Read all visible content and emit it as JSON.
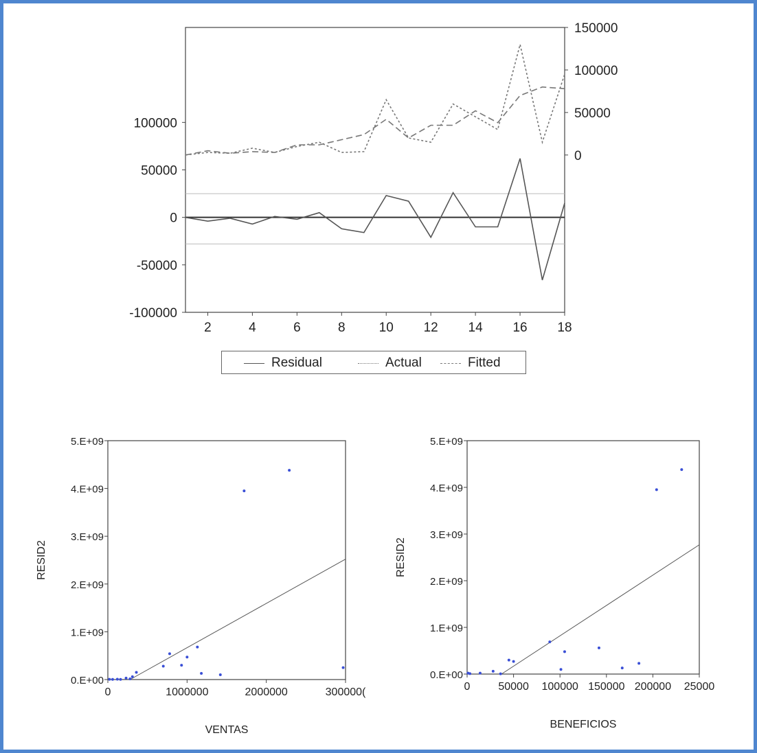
{
  "frame": {
    "border_color": "#4f86cf"
  },
  "chart_data": [
    {
      "type": "line",
      "title": "",
      "x": [
        1,
        2,
        3,
        4,
        5,
        6,
        7,
        8,
        9,
        10,
        11,
        12,
        13,
        14,
        15,
        16,
        17,
        18
      ],
      "xticks": [
        "2",
        "4",
        "6",
        "8",
        "10",
        "12",
        "14",
        "16",
        "18"
      ],
      "xlim": [
        1,
        18
      ],
      "left_axis": {
        "ticks": [
          "100000",
          "50000",
          "0",
          "-50000",
          "-100000"
        ],
        "ylim": [
          -100000,
          200000
        ]
      },
      "right_axis": {
        "ticks": [
          "150000",
          "100000",
          "50000",
          "0"
        ],
        "ylim": [
          -185000,
          150000
        ]
      },
      "residual_band": [
        -28000,
        25000
      ],
      "series": [
        {
          "name": "Residual",
          "axis": "left",
          "style": "solid",
          "color": "#555555",
          "values": [
            0,
            -4000,
            -1000,
            -7000,
            1000,
            -2000,
            5000,
            -12000,
            -16000,
            23000,
            17000,
            -21000,
            26000,
            -10000,
            -10000,
            62000,
            -66000,
            15000
          ]
        },
        {
          "name": "Actual",
          "axis": "right",
          "style": "dotted",
          "color": "#777777",
          "values": [
            0,
            3000,
            2000,
            8000,
            3000,
            10000,
            15000,
            3000,
            4000,
            65000,
            20000,
            15000,
            60000,
            45000,
            30000,
            130000,
            15000,
            95000
          ]
        },
        {
          "name": "Fitted",
          "axis": "right",
          "style": "dashed",
          "color": "#777777",
          "values": [
            0,
            5000,
            2000,
            4000,
            3000,
            12000,
            12000,
            18000,
            24000,
            42000,
            20000,
            35000,
            35000,
            52000,
            38000,
            70000,
            80000,
            78000
          ]
        }
      ]
    },
    {
      "type": "scatter",
      "xlabel": "VENTAS",
      "ylabel": "RESID2",
      "xlim": [
        0,
        3000000
      ],
      "ylim": [
        0,
        5000000000
      ],
      "xticks": [
        "0",
        "1000000",
        "2000000",
        "300000("
      ],
      "yticks": [
        "0.E+00",
        "1.E+09",
        "2.E+09",
        "3.E+09",
        "4.E+09",
        "5.E+09"
      ],
      "points": [
        [
          20000,
          5000000
        ],
        [
          60000,
          4000000
        ],
        [
          120000,
          8000000
        ],
        [
          160000,
          3000000
        ],
        [
          230000,
          30000000
        ],
        [
          280000,
          15000000
        ],
        [
          310000,
          60000000
        ],
        [
          360000,
          150000000
        ],
        [
          700000,
          280000000
        ],
        [
          780000,
          540000000
        ],
        [
          930000,
          300000000
        ],
        [
          1000000,
          470000000
        ],
        [
          1130000,
          680000000
        ],
        [
          1180000,
          130000000
        ],
        [
          1420000,
          100000000
        ],
        [
          1720000,
          3950000000
        ],
        [
          2290000,
          4380000000
        ],
        [
          2970000,
          250000000
        ]
      ],
      "fit_line": [
        [
          280000,
          0
        ],
        [
          3000000,
          2520000000
        ]
      ],
      "point_color": "#3a4fd6"
    },
    {
      "type": "scatter",
      "xlabel": "BENEFICIOS",
      "ylabel": "RESID2",
      "xlim": [
        0,
        250000
      ],
      "ylim": [
        0,
        5000000000
      ],
      "xticks": [
        "0",
        "50000",
        "100000",
        "150000",
        "200000",
        "25000"
      ],
      "yticks": [
        "0.E+00",
        "1.E+09",
        "2.E+09",
        "3.E+09",
        "4.E+09",
        "5.E+09"
      ],
      "points": [
        [
          1000,
          20000000
        ],
        [
          3000,
          10000000
        ],
        [
          14000,
          20000000
        ],
        [
          28000,
          60000000
        ],
        [
          36000,
          5000000
        ],
        [
          45000,
          300000000
        ],
        [
          50000,
          270000000
        ],
        [
          89000,
          690000000
        ],
        [
          101000,
          100000000
        ],
        [
          105000,
          480000000
        ],
        [
          142000,
          560000000
        ],
        [
          167000,
          130000000
        ],
        [
          185000,
          230000000
        ],
        [
          204000,
          3950000000
        ],
        [
          231000,
          4380000000
        ]
      ],
      "fit_line": [
        [
          37000,
          0
        ],
        [
          250000,
          2770000000
        ]
      ],
      "point_color": "#3a4fd6"
    }
  ]
}
